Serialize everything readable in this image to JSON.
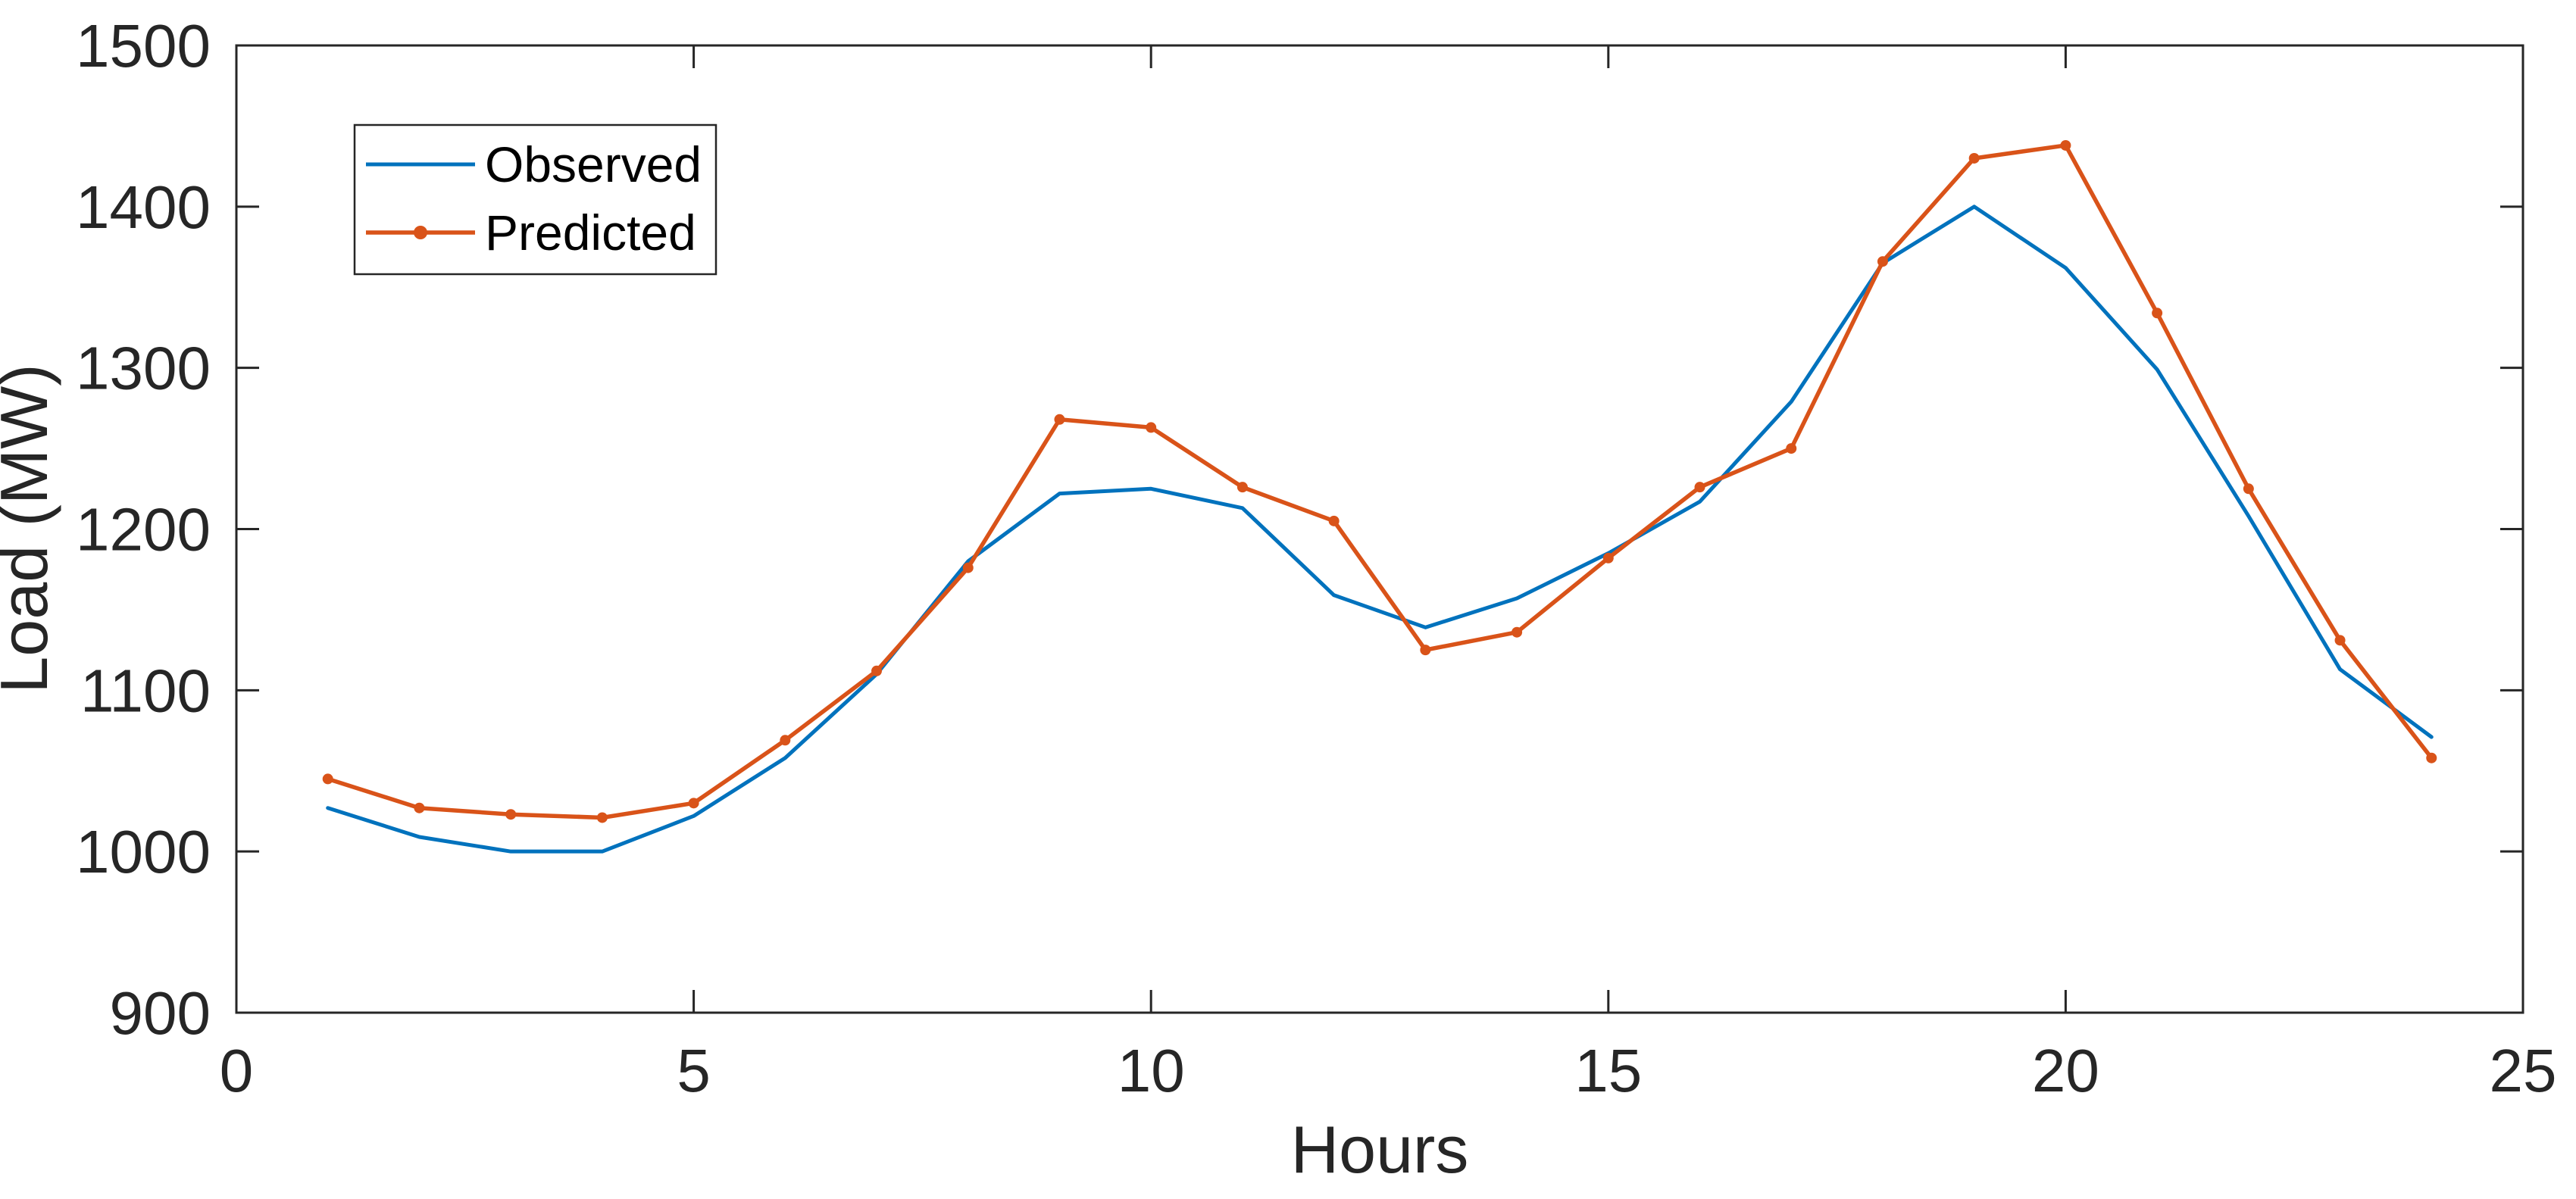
{
  "chart_data": {
    "type": "line",
    "title": "",
    "xlabel": "Hours",
    "ylabel": "Load (MW)",
    "x": [
      1,
      2,
      3,
      4,
      5,
      6,
      7,
      8,
      9,
      10,
      11,
      12,
      13,
      14,
      15,
      16,
      17,
      18,
      19,
      20,
      21,
      22,
      23,
      24
    ],
    "series": [
      {
        "name": "Observed",
        "color": "#0072BD",
        "marker": "none",
        "line_width": 5,
        "values": [
          1027,
          1009,
          1000,
          1000,
          1022,
          1058,
          1110,
          1180,
          1222,
          1225,
          1213,
          1159,
          1139,
          1157,
          1185,
          1217,
          1279,
          1365,
          1400,
          1362,
          1299,
          1208,
          1113,
          1071
        ]
      },
      {
        "name": "Predicted",
        "color": "#D95319",
        "marker": "dot",
        "line_width": 5.5,
        "values": [
          1045,
          1027,
          1023,
          1021,
          1030,
          1069,
          1112,
          1176,
          1268,
          1263,
          1226,
          1205,
          1125,
          1136,
          1182,
          1226,
          1250,
          1366,
          1430,
          1438,
          1334,
          1225,
          1131,
          1058
        ]
      }
    ],
    "xlim": [
      0,
      25
    ],
    "ylim": [
      900,
      1500
    ],
    "xticks": [
      0,
      5,
      10,
      15,
      20,
      25
    ],
    "yticks": [
      900,
      1000,
      1100,
      1200,
      1300,
      1400,
      1500
    ],
    "grid": false,
    "legend_position": "top-left",
    "axis_color": "#262626",
    "background_color": "#ffffff"
  }
}
